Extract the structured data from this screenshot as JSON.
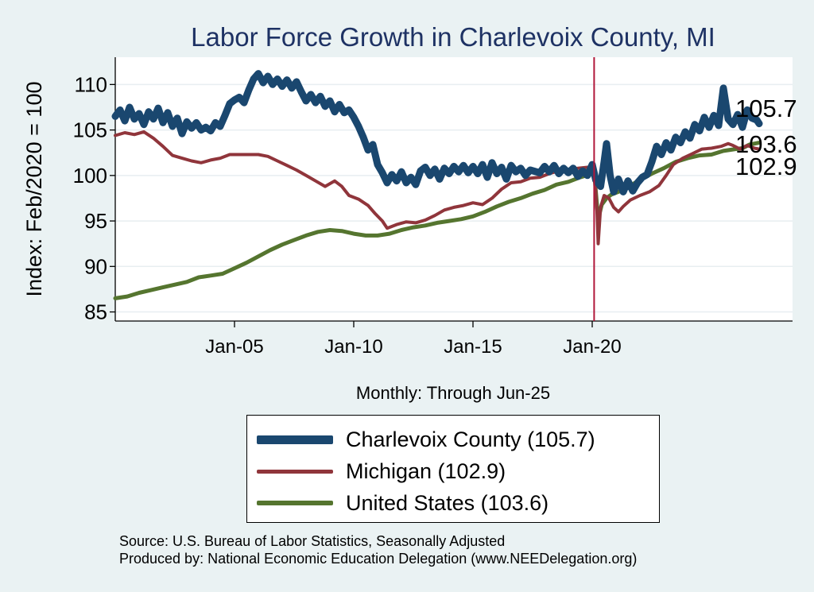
{
  "chart_data": {
    "type": "line",
    "title": "Labor Force Growth in Charlevoix  County, MI",
    "ylabel": "Index: Feb/2020 = 100",
    "xlabel": "Monthly: Through Jun-25",
    "ylim": [
      84,
      113
    ],
    "yticks": [
      85,
      90,
      95,
      100,
      105,
      110
    ],
    "xlim": [
      2000.0,
      2028.4
    ],
    "xticks": [
      {
        "value": 2005.0,
        "label": "Jan-05"
      },
      {
        "value": 2010.0,
        "label": "Jan-10"
      },
      {
        "value": 2015.0,
        "label": "Jan-15"
      },
      {
        "value": 2020.0,
        "label": "Jan-20"
      }
    ],
    "reference_line": {
      "x": 2020.08,
      "color": "#b0173a"
    },
    "series": [
      {
        "name": "Charlevoix  County",
        "legend_label": "Charlevoix  County (105.7)",
        "end_label": "105.7",
        "color": "#1a476f",
        "width": 9,
        "points": [
          [
            2000.0,
            106.5
          ],
          [
            2000.2,
            107.2
          ],
          [
            2000.4,
            106.0
          ],
          [
            2000.6,
            107.5
          ],
          [
            2000.8,
            106.2
          ],
          [
            2001.0,
            106.8
          ],
          [
            2001.2,
            105.6
          ],
          [
            2001.4,
            107.0
          ],
          [
            2001.6,
            106.2
          ],
          [
            2001.8,
            107.4
          ],
          [
            2002.0,
            105.8
          ],
          [
            2002.2,
            106.9
          ],
          [
            2002.4,
            105.4
          ],
          [
            2002.6,
            106.3
          ],
          [
            2002.8,
            104.6
          ],
          [
            2003.0,
            105.9
          ],
          [
            2003.2,
            105.2
          ],
          [
            2003.4,
            105.8
          ],
          [
            2003.6,
            105.0
          ],
          [
            2003.8,
            105.3
          ],
          [
            2004.0,
            104.9
          ],
          [
            2004.2,
            105.8
          ],
          [
            2004.4,
            105.4
          ],
          [
            2004.6,
            106.6
          ],
          [
            2004.8,
            107.9
          ],
          [
            2005.0,
            108.3
          ],
          [
            2005.2,
            108.6
          ],
          [
            2005.4,
            108.0
          ],
          [
            2005.6,
            109.4
          ],
          [
            2005.8,
            110.6
          ],
          [
            2006.0,
            111.2
          ],
          [
            2006.2,
            110.2
          ],
          [
            2006.4,
            110.9
          ],
          [
            2006.6,
            110.0
          ],
          [
            2006.8,
            110.6
          ],
          [
            2007.0,
            109.8
          ],
          [
            2007.2,
            110.5
          ],
          [
            2007.4,
            109.6
          ],
          [
            2007.6,
            110.3
          ],
          [
            2007.8,
            109.2
          ],
          [
            2008.0,
            108.2
          ],
          [
            2008.2,
            108.9
          ],
          [
            2008.4,
            108.0
          ],
          [
            2008.6,
            108.7
          ],
          [
            2008.8,
            107.6
          ],
          [
            2009.0,
            108.2
          ],
          [
            2009.2,
            107.0
          ],
          [
            2009.4,
            107.8
          ],
          [
            2009.6,
            106.9
          ],
          [
            2009.8,
            107.2
          ],
          [
            2010.0,
            106.4
          ],
          [
            2010.2,
            105.4
          ],
          [
            2010.4,
            104.2
          ],
          [
            2010.6,
            102.8
          ],
          [
            2010.8,
            103.4
          ],
          [
            2011.0,
            101.2
          ],
          [
            2011.2,
            100.3
          ],
          [
            2011.4,
            99.2
          ],
          [
            2011.6,
            100.1
          ],
          [
            2011.8,
            99.4
          ],
          [
            2012.0,
            100.4
          ],
          [
            2012.2,
            99.2
          ],
          [
            2012.4,
            99.8
          ],
          [
            2012.6,
            99.0
          ],
          [
            2012.8,
            100.5
          ],
          [
            2013.0,
            100.9
          ],
          [
            2013.2,
            100.0
          ],
          [
            2013.4,
            100.7
          ],
          [
            2013.6,
            99.6
          ],
          [
            2013.8,
            100.8
          ],
          [
            2014.0,
            100.2
          ],
          [
            2014.2,
            101.0
          ],
          [
            2014.4,
            100.4
          ],
          [
            2014.6,
            101.1
          ],
          [
            2014.8,
            100.3
          ],
          [
            2015.0,
            101.0
          ],
          [
            2015.2,
            100.2
          ],
          [
            2015.4,
            101.2
          ],
          [
            2015.6,
            99.8
          ],
          [
            2015.8,
            101.4
          ],
          [
            2016.0,
            100.2
          ],
          [
            2016.2,
            100.9
          ],
          [
            2016.4,
            99.6
          ],
          [
            2016.6,
            101.1
          ],
          [
            2016.8,
            100.4
          ],
          [
            2017.0,
            100.8
          ],
          [
            2017.2,
            100.0
          ],
          [
            2017.4,
            100.6
          ],
          [
            2017.8,
            100.3
          ],
          [
            2018.0,
            101.0
          ],
          [
            2018.2,
            100.4
          ],
          [
            2018.4,
            101.1
          ],
          [
            2018.6,
            100.2
          ],
          [
            2018.8,
            100.8
          ],
          [
            2019.0,
            100.3
          ],
          [
            2019.2,
            100.8
          ],
          [
            2019.4,
            99.9
          ],
          [
            2019.6,
            100.5
          ],
          [
            2019.8,
            100.0
          ],
          [
            2020.0,
            101.2
          ],
          [
            2020.15,
            99.5
          ],
          [
            2020.35,
            98.8
          ],
          [
            2020.5,
            101.5
          ],
          [
            2020.6,
            103.5
          ],
          [
            2020.75,
            100.0
          ],
          [
            2020.9,
            98.2
          ],
          [
            2021.1,
            99.6
          ],
          [
            2021.3,
            98.2
          ],
          [
            2021.5,
            99.4
          ],
          [
            2021.7,
            98.3
          ],
          [
            2021.9,
            99.2
          ],
          [
            2022.1,
            99.8
          ],
          [
            2022.3,
            100.1
          ],
          [
            2022.5,
            101.5
          ],
          [
            2022.7,
            103.2
          ],
          [
            2022.9,
            102.3
          ],
          [
            2023.1,
            103.6
          ],
          [
            2023.3,
            102.8
          ],
          [
            2023.5,
            104.2
          ],
          [
            2023.7,
            103.6
          ],
          [
            2023.9,
            104.8
          ],
          [
            2024.1,
            104.1
          ],
          [
            2024.3,
            105.6
          ],
          [
            2024.5,
            104.9
          ],
          [
            2024.7,
            106.4
          ],
          [
            2024.9,
            105.3
          ],
          [
            2025.1,
            106.6
          ],
          [
            2025.3,
            105.5
          ],
          [
            2025.5,
            109.6
          ],
          [
            2025.7,
            106.2
          ],
          [
            2025.9,
            105.6
          ],
          [
            2026.1,
            106.7
          ],
          [
            2026.3,
            105.3
          ],
          [
            2026.5,
            107.2
          ],
          [
            2026.7,
            106.3
          ],
          [
            2026.9,
            106.1
          ],
          [
            2027.0,
            105.7
          ]
        ]
      },
      {
        "name": "Michigan",
        "legend_label": "Michigan (102.9)",
        "end_label": "102.9",
        "color": "#90353b",
        "width": 4,
        "points": [
          [
            2000.0,
            104.4
          ],
          [
            2000.4,
            104.7
          ],
          [
            2000.8,
            104.5
          ],
          [
            2001.2,
            104.8
          ],
          [
            2001.6,
            104.1
          ],
          [
            2002.0,
            103.2
          ],
          [
            2002.4,
            102.2
          ],
          [
            2002.8,
            101.9
          ],
          [
            2003.2,
            101.6
          ],
          [
            2003.6,
            101.4
          ],
          [
            2004.0,
            101.7
          ],
          [
            2004.4,
            101.9
          ],
          [
            2004.8,
            102.3
          ],
          [
            2005.2,
            102.3
          ],
          [
            2005.6,
            102.3
          ],
          [
            2006.0,
            102.3
          ],
          [
            2006.4,
            102.1
          ],
          [
            2006.8,
            101.6
          ],
          [
            2007.2,
            101.1
          ],
          [
            2007.6,
            100.6
          ],
          [
            2008.0,
            100.0
          ],
          [
            2008.4,
            99.4
          ],
          [
            2008.8,
            98.8
          ],
          [
            2009.2,
            99.4
          ],
          [
            2009.5,
            98.8
          ],
          [
            2009.8,
            97.8
          ],
          [
            2010.2,
            97.4
          ],
          [
            2010.6,
            96.7
          ],
          [
            2010.9,
            95.8
          ],
          [
            2011.2,
            95.0
          ],
          [
            2011.4,
            94.2
          ],
          [
            2011.8,
            94.6
          ],
          [
            2012.2,
            94.9
          ],
          [
            2012.6,
            94.8
          ],
          [
            2013.0,
            95.1
          ],
          [
            2013.4,
            95.6
          ],
          [
            2013.8,
            96.2
          ],
          [
            2014.2,
            96.5
          ],
          [
            2014.6,
            96.7
          ],
          [
            2015.0,
            97.0
          ],
          [
            2015.4,
            96.8
          ],
          [
            2015.8,
            97.5
          ],
          [
            2016.2,
            98.5
          ],
          [
            2016.6,
            99.2
          ],
          [
            2017.0,
            99.3
          ],
          [
            2017.4,
            99.7
          ],
          [
            2017.8,
            99.8
          ],
          [
            2018.2,
            100.2
          ],
          [
            2018.6,
            100.5
          ],
          [
            2019.0,
            100.6
          ],
          [
            2019.4,
            100.8
          ],
          [
            2019.8,
            100.9
          ],
          [
            2020.0,
            100.8
          ],
          [
            2020.1,
            100.2
          ],
          [
            2020.2,
            96.0
          ],
          [
            2020.25,
            92.5
          ],
          [
            2020.35,
            96.5
          ],
          [
            2020.5,
            97.8
          ],
          [
            2020.7,
            97.5
          ],
          [
            2020.9,
            96.5
          ],
          [
            2021.1,
            96.0
          ],
          [
            2021.3,
            96.6
          ],
          [
            2021.6,
            97.3
          ],
          [
            2022.0,
            97.8
          ],
          [
            2022.4,
            98.2
          ],
          [
            2022.8,
            98.9
          ],
          [
            2023.1,
            100.0
          ],
          [
            2023.4,
            101.2
          ],
          [
            2023.8,
            101.9
          ],
          [
            2024.2,
            102.4
          ],
          [
            2024.6,
            102.9
          ],
          [
            2025.0,
            103.0
          ],
          [
            2025.4,
            103.2
          ],
          [
            2025.7,
            103.5
          ],
          [
            2025.9,
            103.3
          ],
          [
            2026.2,
            102.9
          ],
          [
            2026.5,
            103.3
          ],
          [
            2026.8,
            103.0
          ],
          [
            2027.0,
            102.9
          ]
        ]
      },
      {
        "name": "United States",
        "legend_label": "United States (103.6)",
        "end_label": "103.6",
        "color": "#55752f",
        "width": 5,
        "points": [
          [
            2000.0,
            86.5
          ],
          [
            2000.5,
            86.7
          ],
          [
            2001.0,
            87.1
          ],
          [
            2001.5,
            87.4
          ],
          [
            2002.0,
            87.7
          ],
          [
            2002.5,
            88.0
          ],
          [
            2003.0,
            88.3
          ],
          [
            2003.5,
            88.8
          ],
          [
            2004.0,
            89.0
          ],
          [
            2004.5,
            89.2
          ],
          [
            2005.0,
            89.8
          ],
          [
            2005.5,
            90.4
          ],
          [
            2006.0,
            91.1
          ],
          [
            2006.5,
            91.8
          ],
          [
            2007.0,
            92.4
          ],
          [
            2007.5,
            92.9
          ],
          [
            2008.0,
            93.4
          ],
          [
            2008.5,
            93.8
          ],
          [
            2009.0,
            94.0
          ],
          [
            2009.5,
            93.9
          ],
          [
            2010.0,
            93.6
          ],
          [
            2010.5,
            93.4
          ],
          [
            2011.0,
            93.4
          ],
          [
            2011.5,
            93.6
          ],
          [
            2012.0,
            94.0
          ],
          [
            2012.5,
            94.3
          ],
          [
            2013.0,
            94.5
          ],
          [
            2013.5,
            94.8
          ],
          [
            2014.0,
            95.0
          ],
          [
            2014.5,
            95.2
          ],
          [
            2015.0,
            95.5
          ],
          [
            2015.5,
            96.0
          ],
          [
            2016.0,
            96.6
          ],
          [
            2016.5,
            97.1
          ],
          [
            2017.0,
            97.5
          ],
          [
            2017.5,
            98.0
          ],
          [
            2018.0,
            98.4
          ],
          [
            2018.5,
            99.0
          ],
          [
            2019.0,
            99.3
          ],
          [
            2019.5,
            99.8
          ],
          [
            2020.0,
            100.2
          ],
          [
            2020.1,
            99.8
          ],
          [
            2020.25,
            95.2
          ],
          [
            2020.4,
            96.8
          ],
          [
            2020.6,
            97.5
          ],
          [
            2020.8,
            97.9
          ],
          [
            2021.0,
            98.1
          ],
          [
            2021.3,
            98.4
          ],
          [
            2021.6,
            98.9
          ],
          [
            2022.0,
            99.5
          ],
          [
            2022.5,
            100.2
          ],
          [
            2023.0,
            100.8
          ],
          [
            2023.5,
            101.5
          ],
          [
            2024.0,
            101.9
          ],
          [
            2024.5,
            102.2
          ],
          [
            2025.0,
            102.3
          ],
          [
            2025.5,
            102.7
          ],
          [
            2026.0,
            102.9
          ],
          [
            2026.3,
            103.0
          ],
          [
            2026.6,
            103.4
          ],
          [
            2027.0,
            103.6
          ]
        ]
      }
    ]
  }
}
